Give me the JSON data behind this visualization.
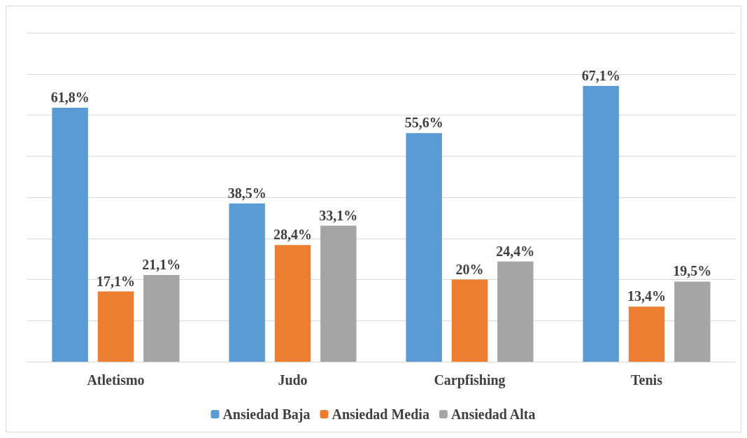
{
  "chart_data": {
    "type": "bar",
    "categories": [
      "Atletismo",
      "Judo",
      "Carpfishing",
      "Tenis"
    ],
    "series": [
      {
        "name": "Ansiedad Baja",
        "color": "#5b9bd5",
        "values": [
          61.8,
          38.5,
          55.6,
          67.1
        ],
        "value_labels": [
          "61,8%",
          "38,5%",
          "55,6%",
          "67,1%"
        ]
      },
      {
        "name": "Ansiedad Media",
        "color": "#ed7d31",
        "values": [
          17.1,
          28.4,
          20,
          13.4
        ],
        "value_labels": [
          "17,1%",
          "28,4%",
          "20%",
          "13,4%"
        ]
      },
      {
        "name": "Ansiedad Alta",
        "color": "#a5a5a5",
        "values": [
          21.1,
          33.1,
          24.4,
          19.5
        ],
        "value_labels": [
          "21,1%",
          "33,1%",
          "24,4%",
          "19,5%"
        ]
      }
    ],
    "ylim": [
      0,
      80
    ],
    "yticks": [
      {
        "value": 0,
        "label": null
      },
      {
        "value": 10,
        "label": null
      },
      {
        "value": 20,
        "label": null
      },
      {
        "value": 30,
        "label": null
      },
      {
        "value": 40,
        "label": null
      },
      {
        "value": 50,
        "label": null
      },
      {
        "value": 60,
        "label": null
      },
      {
        "value": 70,
        "label": null
      },
      {
        "value": 80,
        "label": null
      }
    ],
    "tick_labels": "x",
    "grid": "y",
    "legend": "bottom"
  }
}
